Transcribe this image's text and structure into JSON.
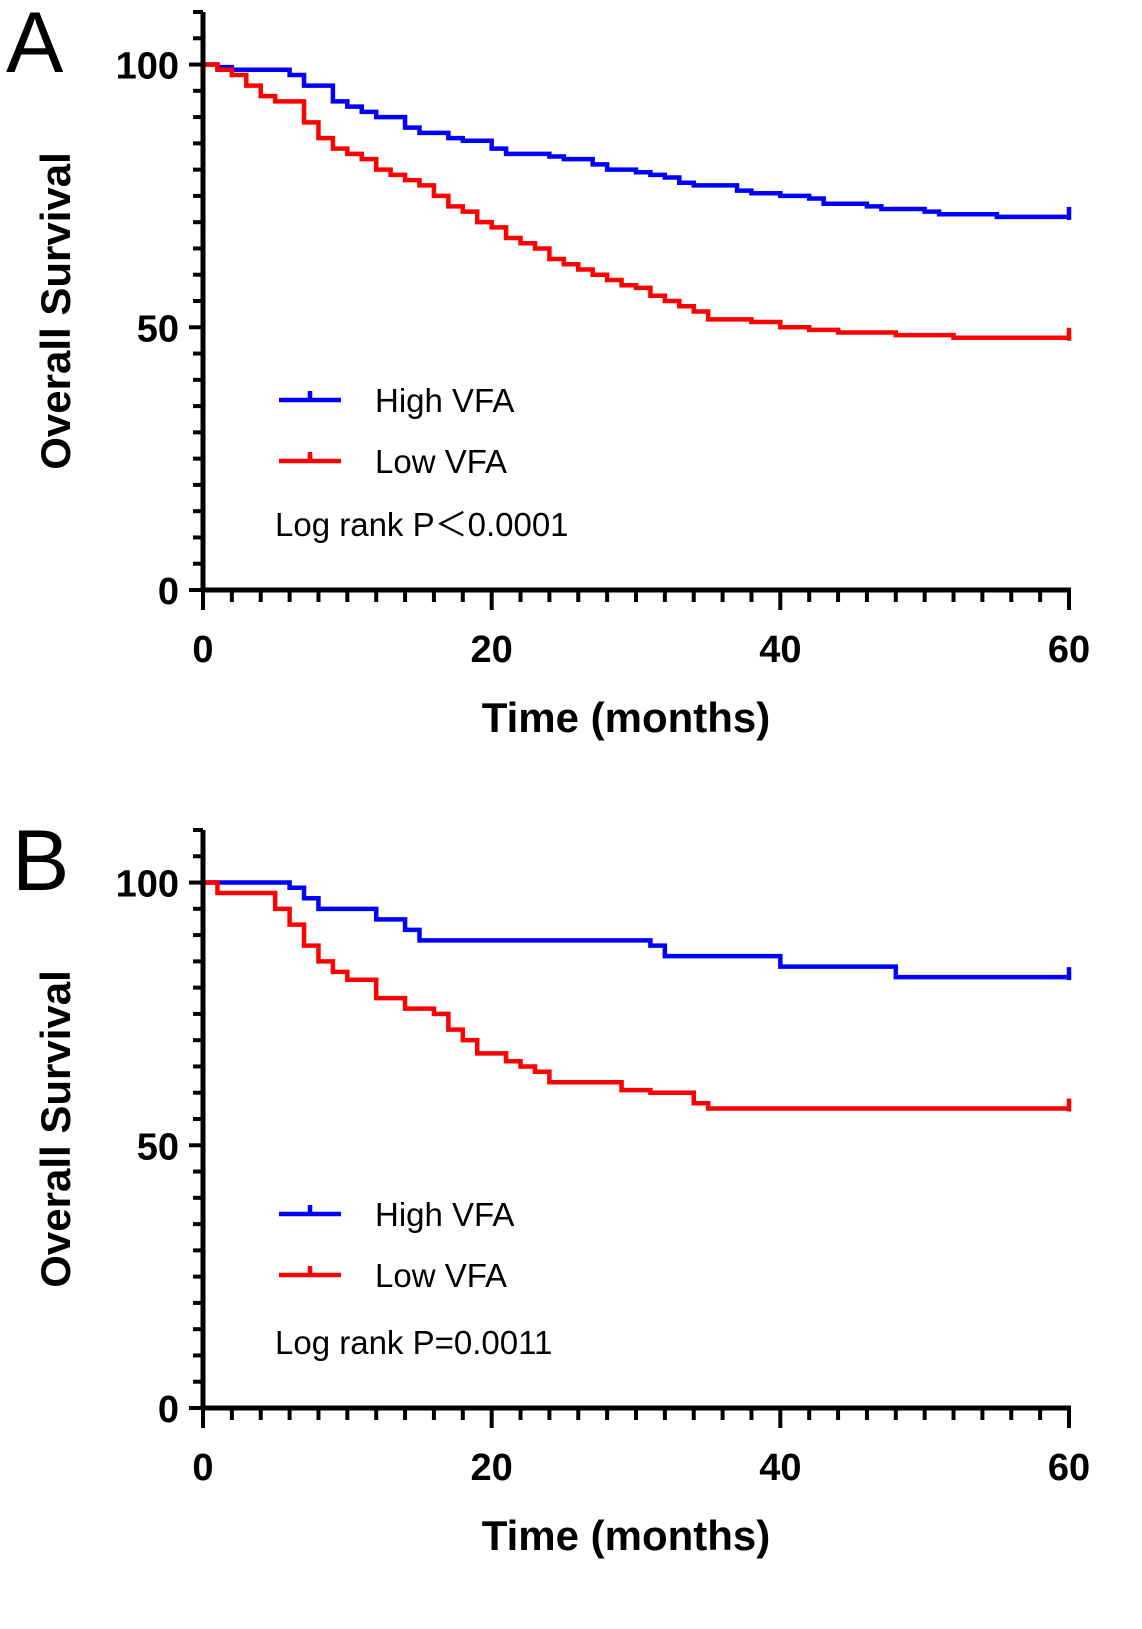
{
  "colors": {
    "high": "#0000ff",
    "low": "#ff0000",
    "axis": "#000000"
  },
  "chart_data": [
    {
      "type": "line",
      "panel": "A",
      "title": "",
      "xlabel": "Time (months)",
      "ylabel": "Overall Survival",
      "xlim": [
        0,
        60
      ],
      "ylim": [
        0,
        110
      ],
      "xticks": [
        "0",
        "20",
        "40",
        "60"
      ],
      "yticks": [
        "0",
        "50",
        "100"
      ],
      "legend": [
        {
          "name": "High VFA",
          "color": "#0000ff"
        },
        {
          "name": "Low VFA",
          "color": "#ff0000"
        }
      ],
      "annotation": "Log rank P＜0.0001",
      "series": [
        {
          "name": "High VFA",
          "color": "#0000ff",
          "x": [
            0,
            1,
            2,
            6,
            7,
            9,
            10,
            11,
            12,
            14,
            15,
            17,
            18,
            20,
            21,
            24,
            25,
            27,
            28,
            30,
            31,
            32,
            33,
            34,
            37,
            38,
            40,
            42,
            43,
            46,
            47,
            49,
            50,
            51,
            55,
            60
          ],
          "y": [
            100,
            99.5,
            99,
            98,
            96,
            93,
            92,
            91,
            90,
            88,
            87,
            86,
            85.5,
            84,
            83,
            82.5,
            82,
            81,
            80,
            79.5,
            79,
            78.5,
            77.5,
            77,
            76,
            75.5,
            75,
            74.5,
            73.5,
            73,
            72.5,
            72.5,
            72,
            71.5,
            71,
            71
          ]
        },
        {
          "name": "Low VFA",
          "color": "#ff0000",
          "x": [
            0,
            1,
            2,
            3,
            4,
            5,
            7,
            8,
            9,
            10,
            11,
            12,
            13,
            14,
            15,
            16,
            17,
            18,
            19,
            20,
            21,
            22,
            23,
            24,
            25,
            26,
            27,
            28,
            29,
            30,
            31,
            32,
            33,
            34,
            35,
            38,
            40,
            42,
            44,
            48,
            52,
            60
          ],
          "y": [
            100,
            99,
            98,
            96,
            94,
            93,
            89,
            86,
            84,
            83,
            82,
            80,
            79,
            78,
            77,
            75,
            73,
            72,
            70,
            69,
            67,
            66,
            65,
            63,
            62,
            61,
            60,
            59,
            58,
            57.5,
            56,
            55,
            54,
            53,
            51.5,
            51,
            50,
            49.5,
            49,
            48.5,
            48,
            48
          ]
        }
      ]
    },
    {
      "type": "line",
      "panel": "B",
      "title": "",
      "xlabel": "Time (months)",
      "ylabel": "Overall Survival",
      "xlim": [
        0,
        60
      ],
      "ylim": [
        0,
        110
      ],
      "xticks": [
        "0",
        "20",
        "40",
        "60"
      ],
      "yticks": [
        "0",
        "50",
        "100"
      ],
      "legend": [
        {
          "name": "High VFA",
          "color": "#0000ff"
        },
        {
          "name": "Low VFA",
          "color": "#ff0000"
        }
      ],
      "annotation": "Log rank P=0.0011",
      "series": [
        {
          "name": "High VFA",
          "color": "#0000ff",
          "x": [
            0,
            6,
            7,
            8,
            12,
            14,
            15,
            31,
            32,
            40,
            48,
            60
          ],
          "y": [
            100,
            99,
            97,
            95,
            93,
            91,
            89,
            88,
            86,
            84,
            82,
            82
          ]
        },
        {
          "name": "Low VFA",
          "color": "#ff0000",
          "x": [
            0,
            1,
            5,
            6,
            7,
            8,
            9,
            10,
            12,
            14,
            16,
            17,
            18,
            19,
            21,
            22,
            23,
            24,
            29,
            31,
            34,
            35,
            60
          ],
          "y": [
            100,
            98,
            95,
            92,
            88,
            85,
            83,
            81.5,
            78,
            76,
            75,
            72,
            70,
            67.5,
            66,
            65,
            64,
            62,
            60.5,
            60,
            58,
            57,
            57
          ]
        }
      ]
    }
  ]
}
